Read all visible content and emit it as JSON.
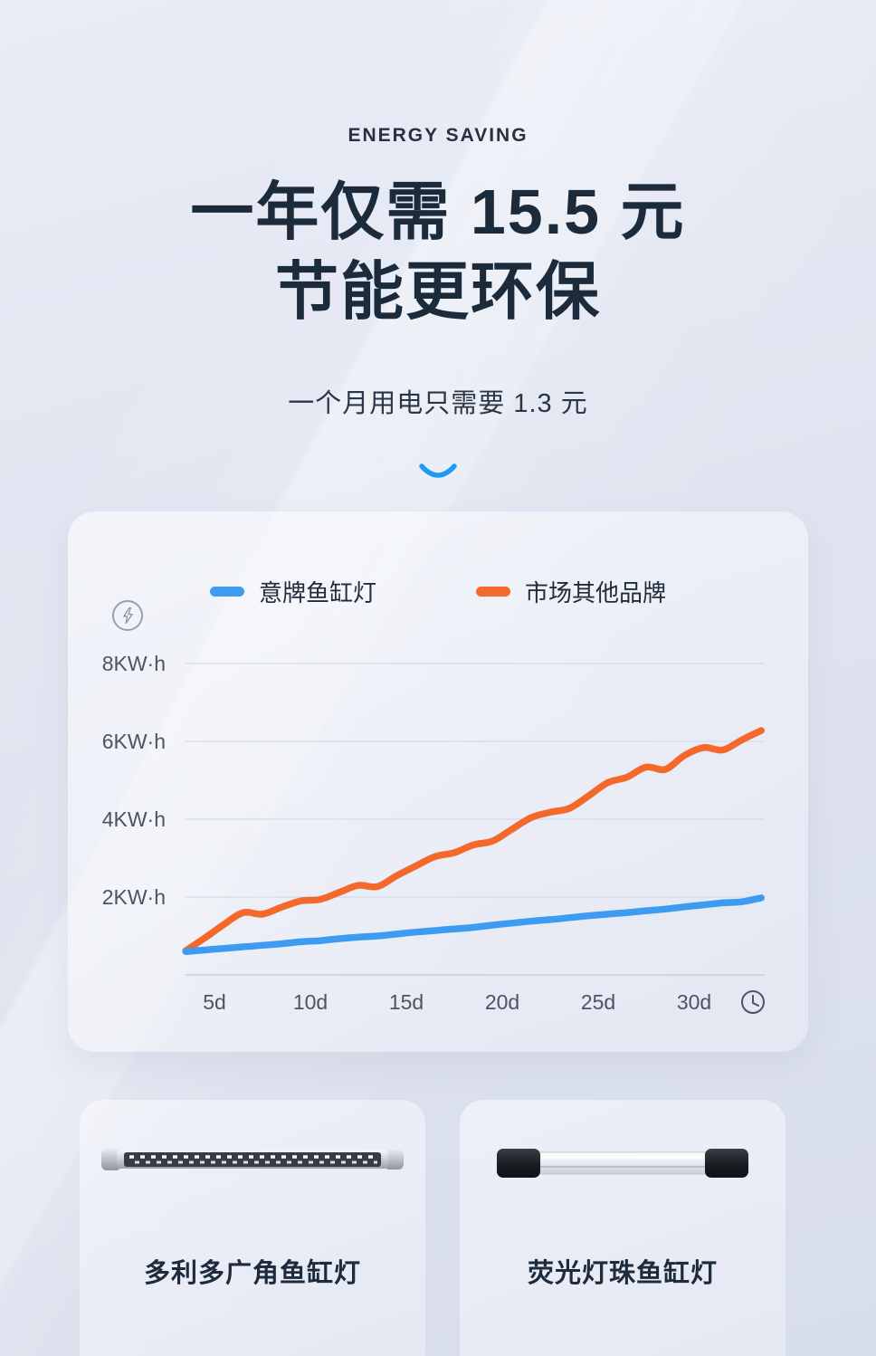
{
  "hero": {
    "eyebrow": "ENERGY SAVING",
    "title_line1": "一年仅需 15.5 元",
    "title_line2": "节能更环保",
    "subtitle": "一个月用电只需要 1.3 元"
  },
  "chart_data": {
    "type": "line",
    "title": "",
    "legend_position": "top-center",
    "grid": true,
    "xlim": [
      3.5,
      33.5
    ],
    "ylim": [
      0,
      8
    ],
    "x_unit": "d",
    "y_unit": "KW·h",
    "x": [
      3.5,
      4.5,
      5.5,
      6.5,
      7.5,
      8.5,
      9.5,
      10.5,
      11.5,
      12.5,
      13.5,
      14.5,
      15.5,
      16.5,
      17.5,
      18.5,
      19.5,
      20.5,
      21.5,
      22.5,
      23.5,
      24.5,
      25.5,
      26.5,
      27.5,
      28.5,
      29.5,
      30.5,
      31.5,
      32.5,
      33.5
    ],
    "series": [
      {
        "id": "yi-brand-light",
        "name": "意牌鱼缸灯",
        "color": "#3D9BF2",
        "values": [
          0.6,
          0.64,
          0.68,
          0.72,
          0.76,
          0.8,
          0.85,
          0.88,
          0.93,
          0.97,
          1.0,
          1.05,
          1.1,
          1.14,
          1.18,
          1.22,
          1.28,
          1.33,
          1.38,
          1.42,
          1.47,
          1.52,
          1.56,
          1.6,
          1.65,
          1.69,
          1.75,
          1.8,
          1.85,
          1.88,
          1.98
        ]
      },
      {
        "id": "other-market-brands",
        "name": "市场其他品牌",
        "color": "#F4682B",
        "values": [
          0.62,
          0.95,
          1.3,
          1.6,
          1.56,
          1.74,
          1.9,
          1.94,
          2.12,
          2.3,
          2.27,
          2.55,
          2.8,
          3.04,
          3.14,
          3.34,
          3.44,
          3.74,
          4.04,
          4.18,
          4.28,
          4.6,
          4.94,
          5.08,
          5.34,
          5.28,
          5.64,
          5.84,
          5.78,
          6.04,
          6.28
        ]
      }
    ],
    "y_ticks": [
      {
        "value": 8,
        "label": "8KW·h"
      },
      {
        "value": 6,
        "label": "6KW·h"
      },
      {
        "value": 4,
        "label": "4KW·h"
      },
      {
        "value": 2,
        "label": "2KW·h"
      }
    ],
    "x_ticks": [
      {
        "value": 5,
        "label": "5d"
      },
      {
        "value": 10,
        "label": "10d"
      },
      {
        "value": 15,
        "label": "15d"
      },
      {
        "value": 20,
        "label": "20d"
      },
      {
        "value": 25,
        "label": "25d"
      },
      {
        "value": 30,
        "label": "30d"
      }
    ],
    "axis_icons": {
      "y_axis": "lightning-icon",
      "x_axis": "clock-icon"
    }
  },
  "products": [
    {
      "name": "多利多广角鱼缸灯"
    },
    {
      "name": "荧光灯珠鱼缸灯"
    }
  ],
  "colors": {
    "accent_blue": "#3D9BF2",
    "accent_orange": "#F4682B",
    "headline": "#1C2B3C",
    "background": "#E2E6F1"
  }
}
